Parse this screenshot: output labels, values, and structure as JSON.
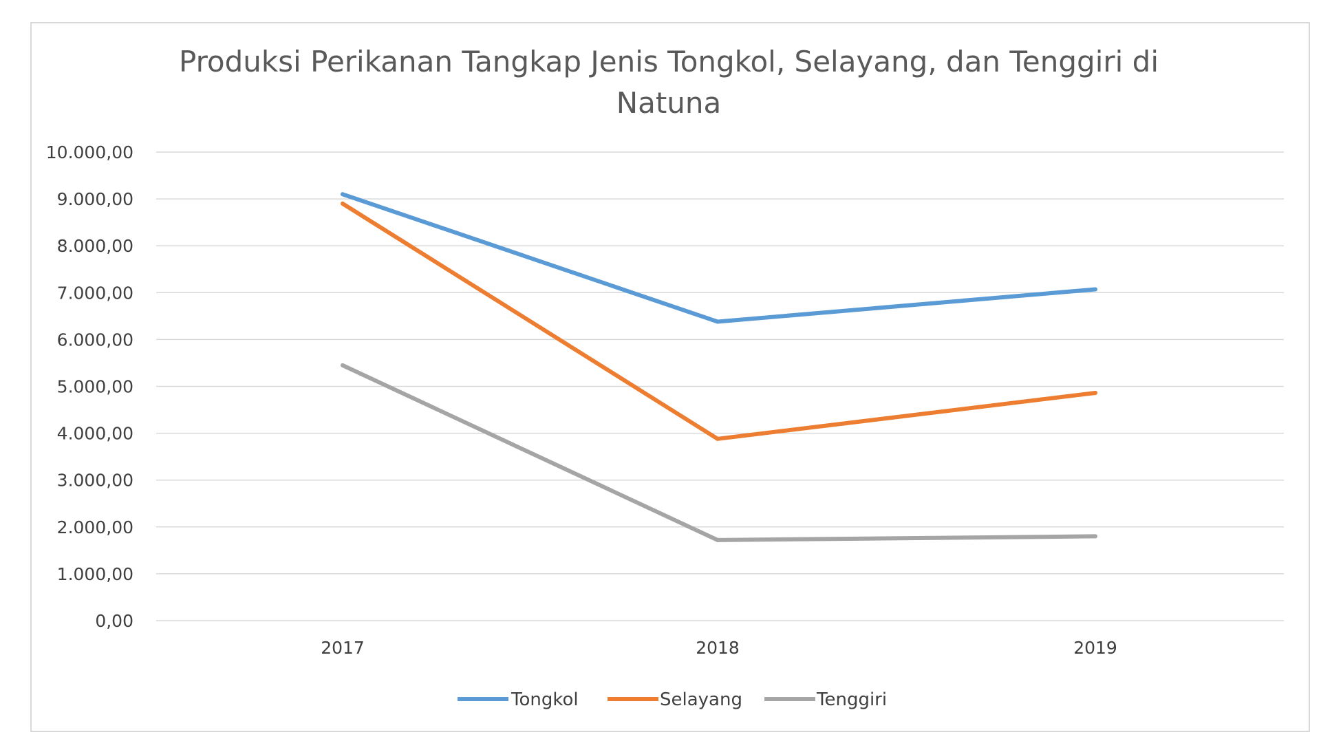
{
  "chart_data": {
    "type": "line",
    "title_lines": [
      "Produksi Perikanan Tangkap Jenis Tongkol, Selayang, dan Tenggiri di",
      "Natuna"
    ],
    "categories": [
      "2017",
      "2018",
      "2019"
    ],
    "series": [
      {
        "name": "Tongkol",
        "color": "#5b9bd5",
        "values": [
          9100,
          6380,
          7070
        ]
      },
      {
        "name": "Selayang",
        "color": "#ed7d31",
        "values": [
          8900,
          3880,
          4860
        ]
      },
      {
        "name": "Tenggiri",
        "color": "#a5a5a5",
        "values": [
          5450,
          1720,
          1800
        ]
      }
    ],
    "y_ticks": [
      {
        "value": 0,
        "label": "0,00"
      },
      {
        "value": 1000,
        "label": "1.000,00"
      },
      {
        "value": 2000,
        "label": "2.000,00"
      },
      {
        "value": 3000,
        "label": "3.000,00"
      },
      {
        "value": 4000,
        "label": "4.000,00"
      },
      {
        "value": 5000,
        "label": "5.000,00"
      },
      {
        "value": 6000,
        "label": "6.000,00"
      },
      {
        "value": 7000,
        "label": "7.000,00"
      },
      {
        "value": 8000,
        "label": "8.000,00"
      },
      {
        "value": 9000,
        "label": "9.000,00"
      },
      {
        "value": 10000,
        "label": "10.000,00"
      }
    ],
    "ylim": [
      0,
      10000
    ],
    "grid": true,
    "legend_position": "bottom"
  }
}
